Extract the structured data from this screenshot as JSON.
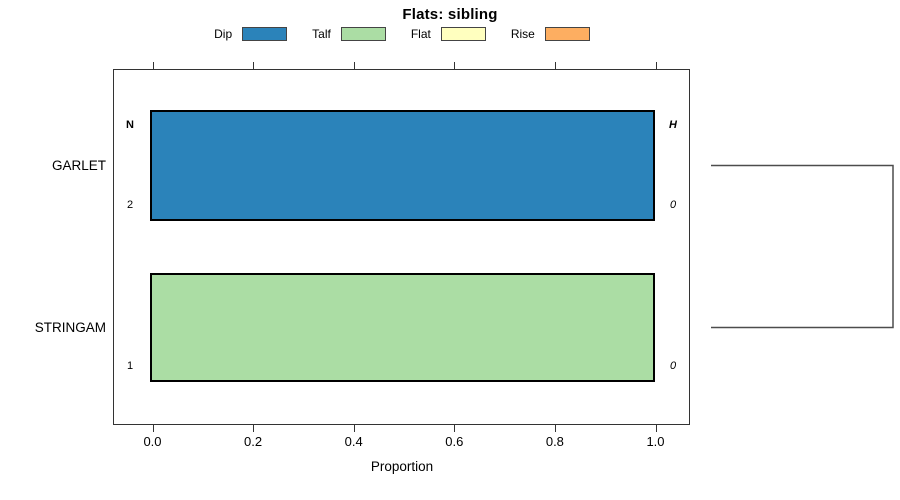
{
  "chart": {
    "title": "Flats: sibling",
    "xlabel": "Proportion",
    "x_tick_labels": [
      "0.0",
      "0.2",
      "0.4",
      "0.6",
      "0.8",
      "1.0"
    ],
    "legend": [
      {
        "label": "Dip",
        "color": "#2B83BA"
      },
      {
        "label": "Talf",
        "color": "#ABDDA4"
      },
      {
        "label": "Flat",
        "color": "#FFFFBF"
      },
      {
        "label": "Rise",
        "color": "#FDAE61"
      }
    ],
    "column_headers": {
      "left": "N",
      "right": "H"
    },
    "rows": [
      {
        "category": "GARLET",
        "n": "2",
        "h": "0",
        "segments": [
          {
            "name": "Dip",
            "value": 1.0,
            "color": "#2B83BA"
          }
        ]
      },
      {
        "category": "STRINGAM",
        "n": "1",
        "h": "0",
        "segments": [
          {
            "name": "Talf",
            "value": 1.0,
            "color": "#ABDDA4"
          }
        ]
      }
    ]
  },
  "chart_data": {
    "type": "bar",
    "orientation": "horizontal",
    "stacked": true,
    "title": "Flats: sibling",
    "xlabel": "Proportion",
    "ylabel": "",
    "xlim": [
      0.0,
      1.0
    ],
    "x_ticks": [
      0.0,
      0.2,
      0.4,
      0.6,
      0.8,
      1.0
    ],
    "categories": [
      "GARLET",
      "STRINGAM"
    ],
    "series": [
      {
        "name": "Dip",
        "color": "#2B83BA",
        "values": [
          1.0,
          0.0
        ]
      },
      {
        "name": "Talf",
        "color": "#ABDDA4",
        "values": [
          0.0,
          1.0
        ]
      },
      {
        "name": "Flat",
        "color": "#FFFFBF",
        "values": [
          0.0,
          0.0
        ]
      },
      {
        "name": "Rise",
        "color": "#FDAE61",
        "values": [
          0.0,
          0.0
        ]
      }
    ],
    "row_annotations": {
      "N": [
        2,
        1
      ],
      "H": [
        0,
        0
      ]
    },
    "legend_position": "top",
    "grid": false,
    "right_bracket_joining_rows": true
  }
}
